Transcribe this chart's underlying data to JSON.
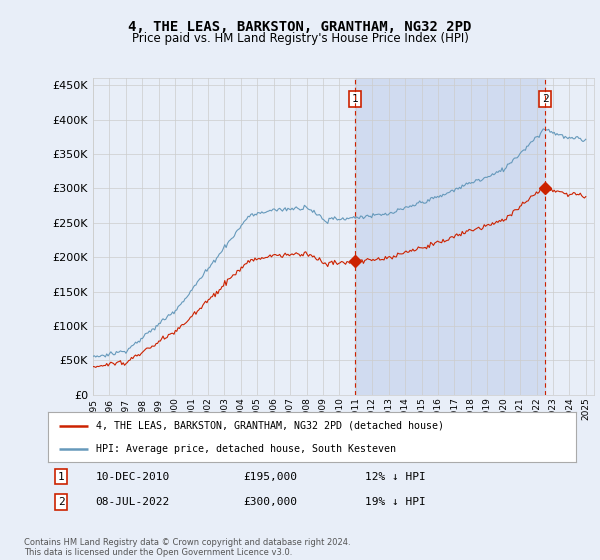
{
  "title": "4, THE LEAS, BARKSTON, GRANTHAM, NG32 2PD",
  "subtitle": "Price paid vs. HM Land Registry's House Price Index (HPI)",
  "legend_line1": "4, THE LEAS, BARKSTON, GRANTHAM, NG32 2PD (detached house)",
  "legend_line2": "HPI: Average price, detached house, South Kesteven",
  "annotation1_date": "10-DEC-2010",
  "annotation1_price": "£195,000",
  "annotation1_pct": "12% ↓ HPI",
  "annotation2_date": "08-JUL-2022",
  "annotation2_price": "£300,000",
  "annotation2_pct": "19% ↓ HPI",
  "footer": "Contains HM Land Registry data © Crown copyright and database right 2024.\nThis data is licensed under the Open Government Licence v3.0.",
  "bg_color": "#e8eef8",
  "plot_bg_color": "#e8eef8",
  "shade_color": "#d0dbf0",
  "red_color": "#cc2200",
  "blue_color": "#6699bb",
  "grid_color": "#cccccc",
  "vline_color": "#cc2200",
  "ymin": 0,
  "ymax": 460000,
  "xmin": 1995.0,
  "xmax": 2025.5,
  "sale1_x": 2010.94,
  "sale1_y": 195000,
  "sale2_x": 2022.52,
  "sale2_y": 300000,
  "yticks": [
    0,
    50000,
    100000,
    150000,
    200000,
    250000,
    300000,
    350000,
    400000,
    450000
  ]
}
